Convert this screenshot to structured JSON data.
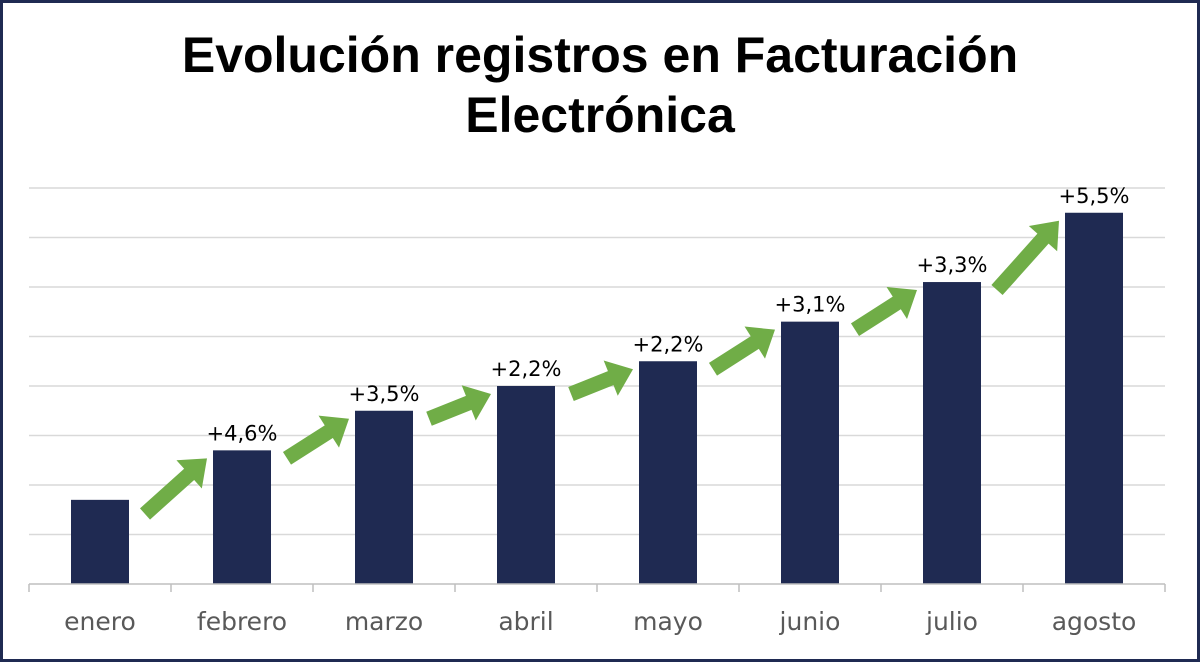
{
  "colors": {
    "bar": "#1f2a52",
    "arrow": "#70ad47",
    "grid": "#d9d9d9",
    "frame": "#1f2a52",
    "tick_text": "#595959",
    "label_text": "#000000"
  },
  "chart_data": {
    "type": "bar",
    "title": "Evolución registros en Facturación\nElectrónica",
    "xlabel": "",
    "ylabel": "",
    "categories": [
      "enero",
      "febrero",
      "marzo",
      "abril",
      "mayo",
      "junio",
      "julio",
      "agosto"
    ],
    "values": [
      1.7,
      2.7,
      3.5,
      4.0,
      4.5,
      5.3,
      6.1,
      7.5
    ],
    "data_labels": [
      "",
      "+4,6%",
      "+3,5%",
      "+2,2%",
      "+2,2%",
      "+3,1%",
      "+3,3%",
      "+5,5%"
    ],
    "ylim": [
      0,
      8
    ],
    "gridlines": 8,
    "y_tick_labels_visible": false,
    "legend": "none",
    "growth_arrows": true
  }
}
